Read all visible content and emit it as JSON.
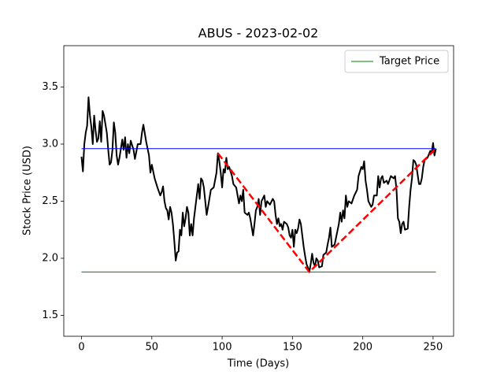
{
  "chart_data": {
    "type": "line",
    "title": "ABUS - 2023-02-02",
    "x_label": "Time (Days)",
    "y_label": "Stock Price (USD)",
    "xlim": [
      -12.6,
      264.6
    ],
    "ylim": [
      1.317,
      3.862
    ],
    "xticks": [
      0,
      50,
      100,
      150,
      200,
      250
    ],
    "yticks": [
      1.5,
      {
        "value": 2,
        "label": "2.0"
      },
      2.5,
      {
        "value": 3,
        "label": "3.0"
      },
      3.5
    ],
    "legend": "upper right",
    "series": [
      {
        "color": "#000000",
        "linestyle": "solid",
        "linewidth": 2,
        "x": [
          0,
          1,
          2,
          3,
          4,
          5,
          6,
          7,
          8,
          9,
          10,
          11,
          12,
          13,
          14,
          15,
          16,
          18,
          19,
          20,
          21,
          22,
          23,
          24,
          25,
          26,
          27,
          29,
          30,
          31,
          32,
          33,
          34,
          35,
          37,
          38,
          40,
          42,
          43,
          44,
          46,
          48,
          49,
          50,
          52,
          54,
          56,
          57,
          58,
          59,
          60,
          61,
          62,
          63,
          64,
          65,
          66,
          67,
          68,
          69,
          70,
          71,
          72,
          73,
          74,
          75,
          76,
          77,
          78,
          79,
          80,
          82,
          83,
          84,
          85,
          86,
          87,
          88,
          89,
          90,
          92,
          94,
          96,
          97,
          98,
          99,
          100,
          101,
          102,
          103,
          104,
          105,
          107,
          108,
          110,
          111,
          112,
          113,
          114,
          115,
          116,
          118,
          119,
          120,
          122,
          123,
          124,
          125,
          126,
          127,
          128,
          130,
          131,
          132,
          134,
          136,
          137,
          138,
          139,
          140,
          141,
          142,
          143,
          144,
          146,
          147,
          148,
          149,
          150,
          151,
          152,
          153,
          154,
          155,
          156,
          157,
          158,
          159,
          160,
          161,
          162,
          163,
          164,
          165,
          166,
          167,
          168,
          169,
          171,
          172,
          174,
          175,
          176,
          177,
          178,
          180,
          181,
          183,
          184,
          185,
          186,
          187,
          188,
          189,
          190,
          192,
          194,
          196,
          197,
          199,
          200,
          201,
          202,
          203,
          204,
          206,
          207,
          208,
          210,
          211,
          212,
          213,
          214,
          215,
          217,
          218,
          220,
          222,
          223,
          224,
          225,
          226,
          227,
          228,
          229,
          230,
          232,
          233,
          234,
          235,
          236,
          237,
          238,
          240,
          241,
          242,
          243,
          244,
          246,
          248,
          249,
          250,
          251,
          252
        ],
        "values": [
          2.89,
          2.76,
          3.0,
          3.1,
          3.16,
          3.41,
          3.25,
          3.15,
          3.0,
          3.25,
          3.12,
          3.02,
          3.05,
          3.2,
          3.02,
          3.29,
          3.25,
          3.1,
          2.95,
          2.82,
          2.84,
          2.95,
          3.19,
          3.1,
          2.9,
          2.82,
          2.88,
          3.04,
          2.95,
          3.06,
          2.88,
          3.0,
          2.92,
          3.03,
          2.95,
          2.87,
          3.0,
          3.0,
          3.1,
          3.17,
          3.02,
          2.9,
          2.75,
          2.82,
          2.7,
          2.62,
          2.55,
          2.58,
          2.63,
          2.5,
          2.44,
          2.42,
          2.34,
          2.45,
          2.4,
          2.3,
          2.15,
          1.98,
          2.05,
          2.06,
          2.25,
          2.2,
          2.4,
          2.28,
          2.35,
          2.45,
          2.4,
          2.2,
          2.3,
          2.2,
          2.35,
          2.55,
          2.65,
          2.52,
          2.7,
          2.68,
          2.62,
          2.5,
          2.38,
          2.45,
          2.6,
          2.62,
          2.75,
          2.92,
          2.85,
          2.75,
          2.62,
          2.78,
          2.75,
          2.88,
          2.78,
          2.8,
          2.72,
          2.65,
          2.62,
          2.55,
          2.48,
          2.55,
          2.5,
          2.6,
          2.4,
          2.38,
          2.4,
          2.35,
          2.2,
          2.3,
          2.42,
          2.45,
          2.52,
          2.38,
          2.5,
          2.55,
          2.45,
          2.5,
          2.47,
          2.52,
          2.5,
          2.38,
          2.3,
          2.35,
          2.28,
          2.3,
          2.25,
          2.32,
          2.3,
          2.27,
          2.2,
          2.18,
          2.25,
          2.1,
          2.25,
          2.22,
          2.26,
          2.34,
          2.3,
          2.2,
          2.1,
          2.02,
          1.95,
          1.92,
          1.88,
          1.95,
          2.04,
          1.96,
          1.93,
          2.0,
          1.98,
          1.92,
          1.93,
          2.03,
          2.05,
          2.12,
          2.18,
          2.27,
          2.1,
          2.12,
          2.18,
          2.3,
          2.4,
          2.32,
          2.42,
          2.35,
          2.55,
          2.45,
          2.5,
          2.48,
          2.55,
          2.6,
          2.72,
          2.8,
          2.78,
          2.85,
          2.68,
          2.6,
          2.5,
          2.45,
          2.47,
          2.55,
          2.55,
          2.72,
          2.62,
          2.7,
          2.72,
          2.66,
          2.68,
          2.65,
          2.72,
          2.7,
          2.72,
          2.6,
          2.35,
          2.32,
          2.22,
          2.3,
          2.32,
          2.25,
          2.26,
          2.45,
          2.6,
          2.7,
          2.86,
          2.85,
          2.82,
          2.65,
          2.65,
          2.7,
          2.8,
          2.86,
          2.88,
          2.94,
          2.92,
          3.01,
          2.9,
          2.96
        ]
      },
      {
        "color": "#0000ff",
        "linestyle": "solid",
        "linewidth": 1,
        "x": [
          0,
          252
        ],
        "values": [
          2.96,
          2.96
        ]
      },
      {
        "name": "Target Price",
        "color": "#008000",
        "linestyle": "solid",
        "linewidth": 1,
        "x": [
          0,
          252
        ],
        "values": [
          1.88,
          1.88
        ]
      },
      {
        "color": "#ff0000",
        "linestyle": "dashed",
        "linewidth": 2.5,
        "x": [
          97,
          162,
          252
        ],
        "values": [
          2.92,
          1.88,
          2.96
        ]
      }
    ]
  }
}
